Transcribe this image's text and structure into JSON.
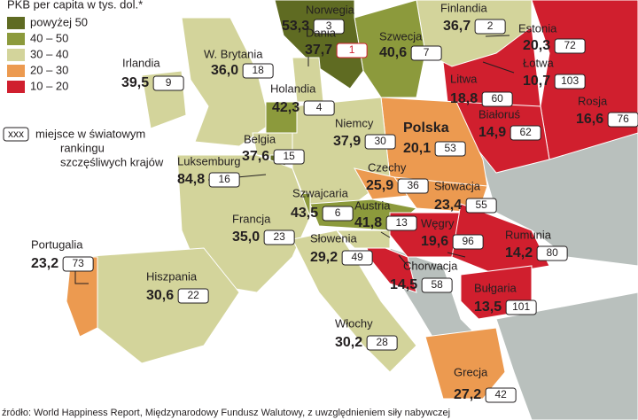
{
  "legend": {
    "title": "PKB per capita w tys. dol.*",
    "items": [
      {
        "label": "powyżej 50",
        "color": "#5f6b22"
      },
      {
        "label": "40 – 50",
        "color": "#8c9a3c"
      },
      {
        "label": "30 – 40",
        "color": "#d3d49b"
      },
      {
        "label": "20 – 30",
        "color": "#ec9a50"
      },
      {
        "label": "10 – 20",
        "color": "#d01f2e"
      }
    ]
  },
  "rank_note": {
    "box": "xxx",
    "lines": [
      "miejsce w światowym",
      "rankingu",
      "szczęśliwych krajów"
    ]
  },
  "countries": [
    {
      "name": "Norwegia",
      "gdp": "53,3",
      "rank": 3
    },
    {
      "name": "Finlandia",
      "gdp": "36,7",
      "rank": 2
    },
    {
      "name": "Estonia",
      "gdp": "20,3",
      "rank": 72
    },
    {
      "name": "Łotwa",
      "gdp": "10,7",
      "rank": 103
    },
    {
      "name": "Szwecja",
      "gdp": "40,6",
      "rank": 7
    },
    {
      "name": "Dania",
      "gdp": "37,7",
      "rank": 1
    },
    {
      "name": "W. Brytania",
      "gdp": "36,0",
      "rank": 18
    },
    {
      "name": "Irlandia",
      "gdp": "39,5",
      "rank": 9
    },
    {
      "name": "Litwa",
      "gdp": "18,8",
      "rank": 60
    },
    {
      "name": "Rosja",
      "gdp": "16,6",
      "rank": 76
    },
    {
      "name": "Holandia",
      "gdp": "42,3",
      "rank": 4
    },
    {
      "name": "Białoruś",
      "gdp": "14,9",
      "rank": 62
    },
    {
      "name": "Niemcy",
      "gdp": "37,9",
      "rank": 30
    },
    {
      "name": "Polska",
      "gdp": "20,1",
      "rank": 53
    },
    {
      "name": "Belgia",
      "gdp": "37,6",
      "rank": 15
    },
    {
      "name": "Luksemburg",
      "gdp": "84,8",
      "rank": 16
    },
    {
      "name": "Czechy",
      "gdp": "25,9",
      "rank": 36
    },
    {
      "name": "Słowacja",
      "gdp": "23,4",
      "rank": 55
    },
    {
      "name": "Szwajcaria",
      "gdp": "43,5",
      "rank": 6
    },
    {
      "name": "Austria",
      "gdp": "41,8",
      "rank": 13
    },
    {
      "name": "Francja",
      "gdp": "35,0",
      "rank": 23
    },
    {
      "name": "Słowenia",
      "gdp": "29,2",
      "rank": 49
    },
    {
      "name": "Węgry",
      "gdp": "19,6",
      "rank": 96
    },
    {
      "name": "Rumunia",
      "gdp": "14,2",
      "rank": 80
    },
    {
      "name": "Portugalia",
      "gdp": "23,2",
      "rank": 73
    },
    {
      "name": "Chorwacja",
      "gdp": "14,5",
      "rank": 58
    },
    {
      "name": "Hiszpania",
      "gdp": "30,6",
      "rank": 22
    },
    {
      "name": "Bułgaria",
      "gdp": "13,5",
      "rank": 101
    },
    {
      "name": "Włochy",
      "gdp": "30,2",
      "rank": 28
    },
    {
      "name": "Grecja",
      "gdp": "27,2",
      "rank": 42
    }
  ],
  "source": "źródło: World Happiness Report, Międzynarodowy Fundusz Walutowy, z uwzględnieniem siły nabywczej"
}
